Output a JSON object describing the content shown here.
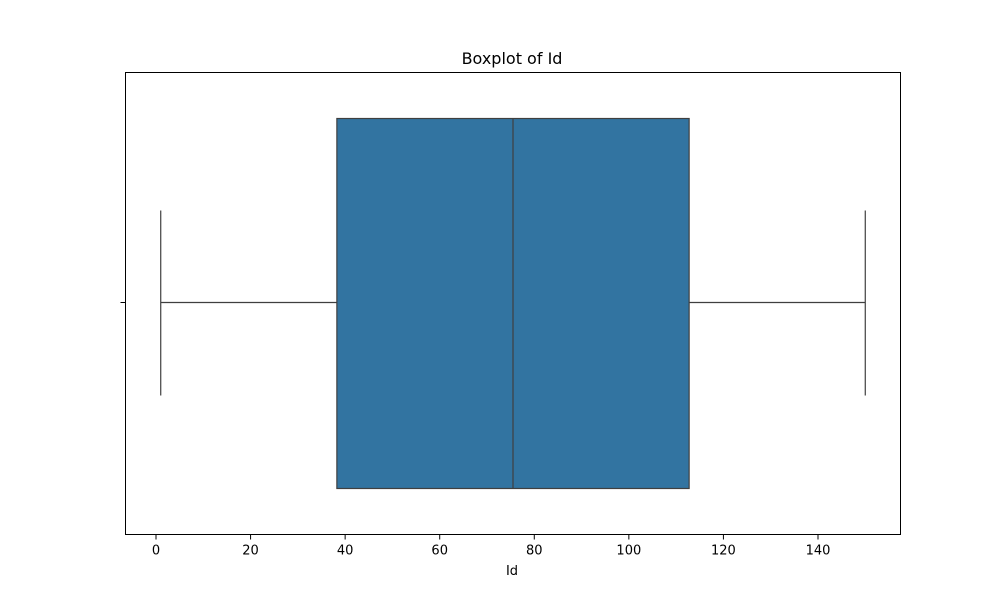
{
  "chart_data": {
    "type": "boxplot",
    "title": "Boxplot of Id",
    "xlabel": "Id",
    "ylabel": "",
    "orientation": "horizontal",
    "xlim": [
      -6.45,
      157.45
    ],
    "xticks": [
      0,
      20,
      40,
      60,
      80,
      100,
      120,
      140
    ],
    "xtick_labels": [
      "0",
      "20",
      "40",
      "60",
      "80",
      "100",
      "120",
      "140"
    ],
    "grid": false,
    "series": [
      {
        "name": "Id",
        "min": 1,
        "q1": 38.25,
        "median": 75.5,
        "q3": 112.75,
        "max": 150,
        "outliers": []
      }
    ],
    "colors": {
      "box_fill": "#3274a1",
      "line": "#3f3f3f",
      "axis": "#000000"
    }
  }
}
